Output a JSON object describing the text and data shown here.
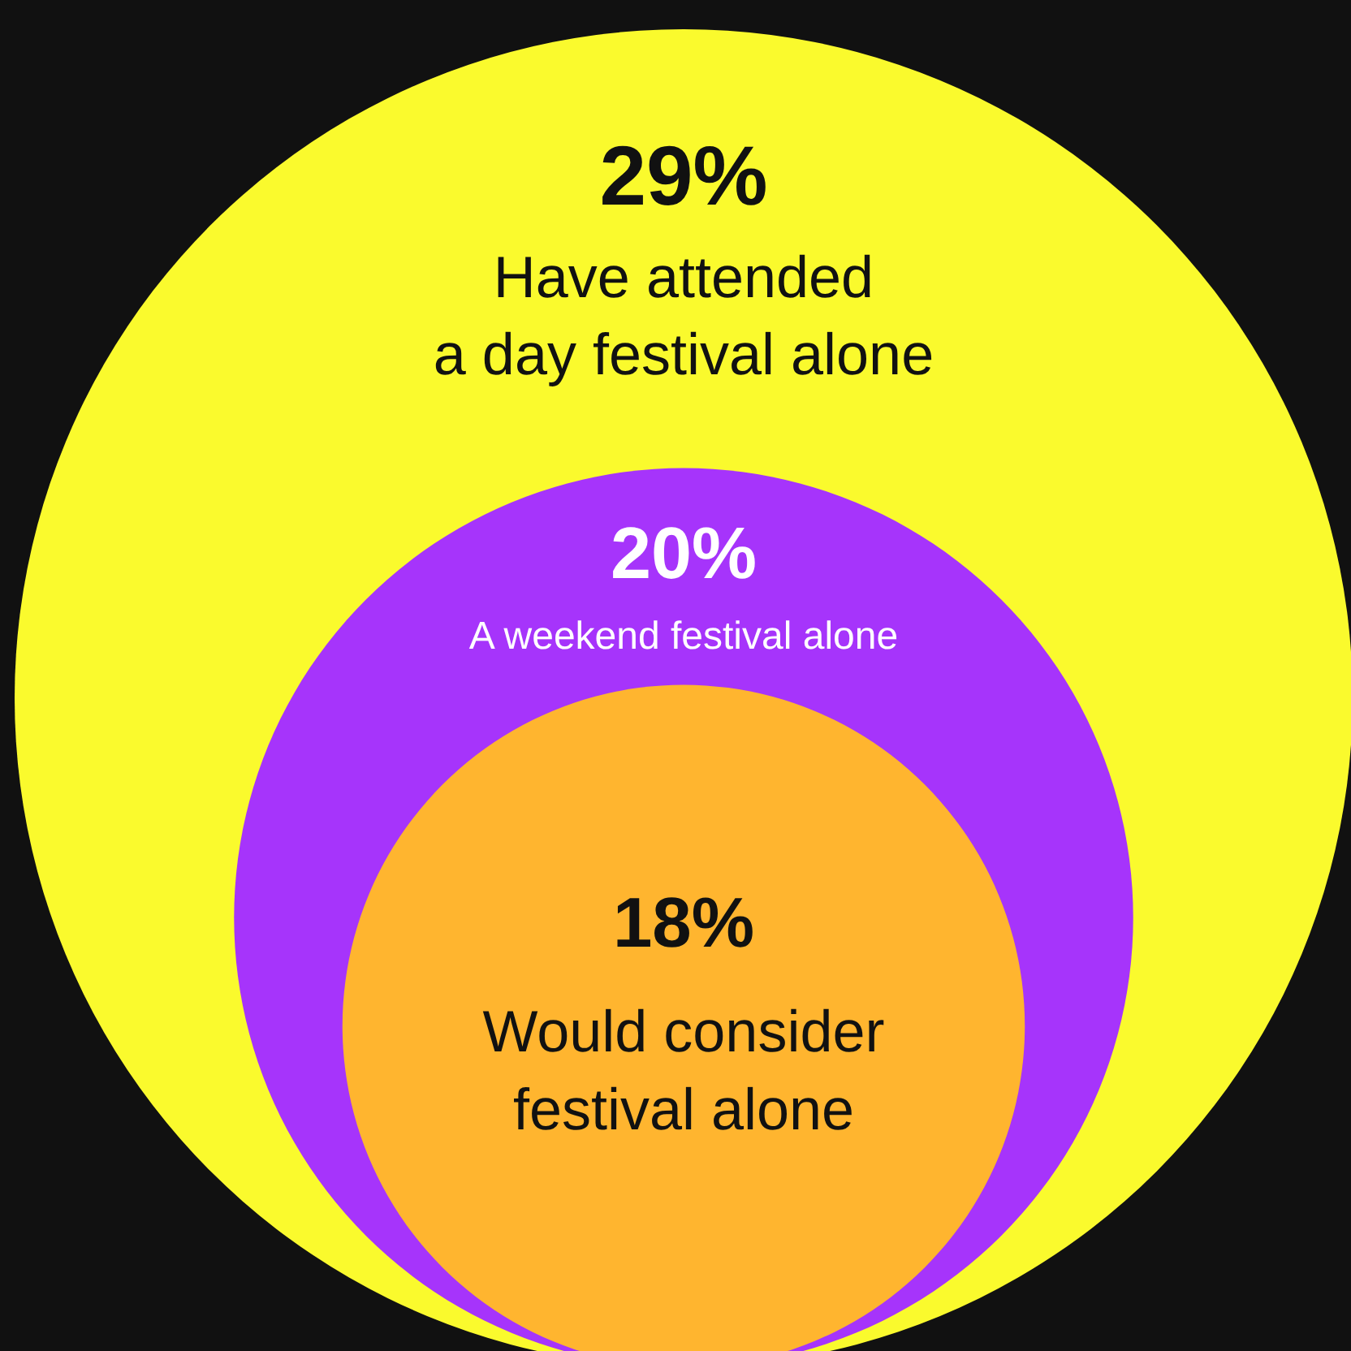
{
  "chart_data": {
    "type": "other",
    "categories": [
      "Have attended\na day festival alone",
      "A weekend festival alone",
      "Would consider\nfestival alone"
    ],
    "values": [
      29,
      20,
      18
    ],
    "value_labels": [
      "29%",
      "20%",
      "18%"
    ],
    "colors": [
      "#fafa2d",
      "#a634fb",
      "#ffb52f"
    ]
  }
}
